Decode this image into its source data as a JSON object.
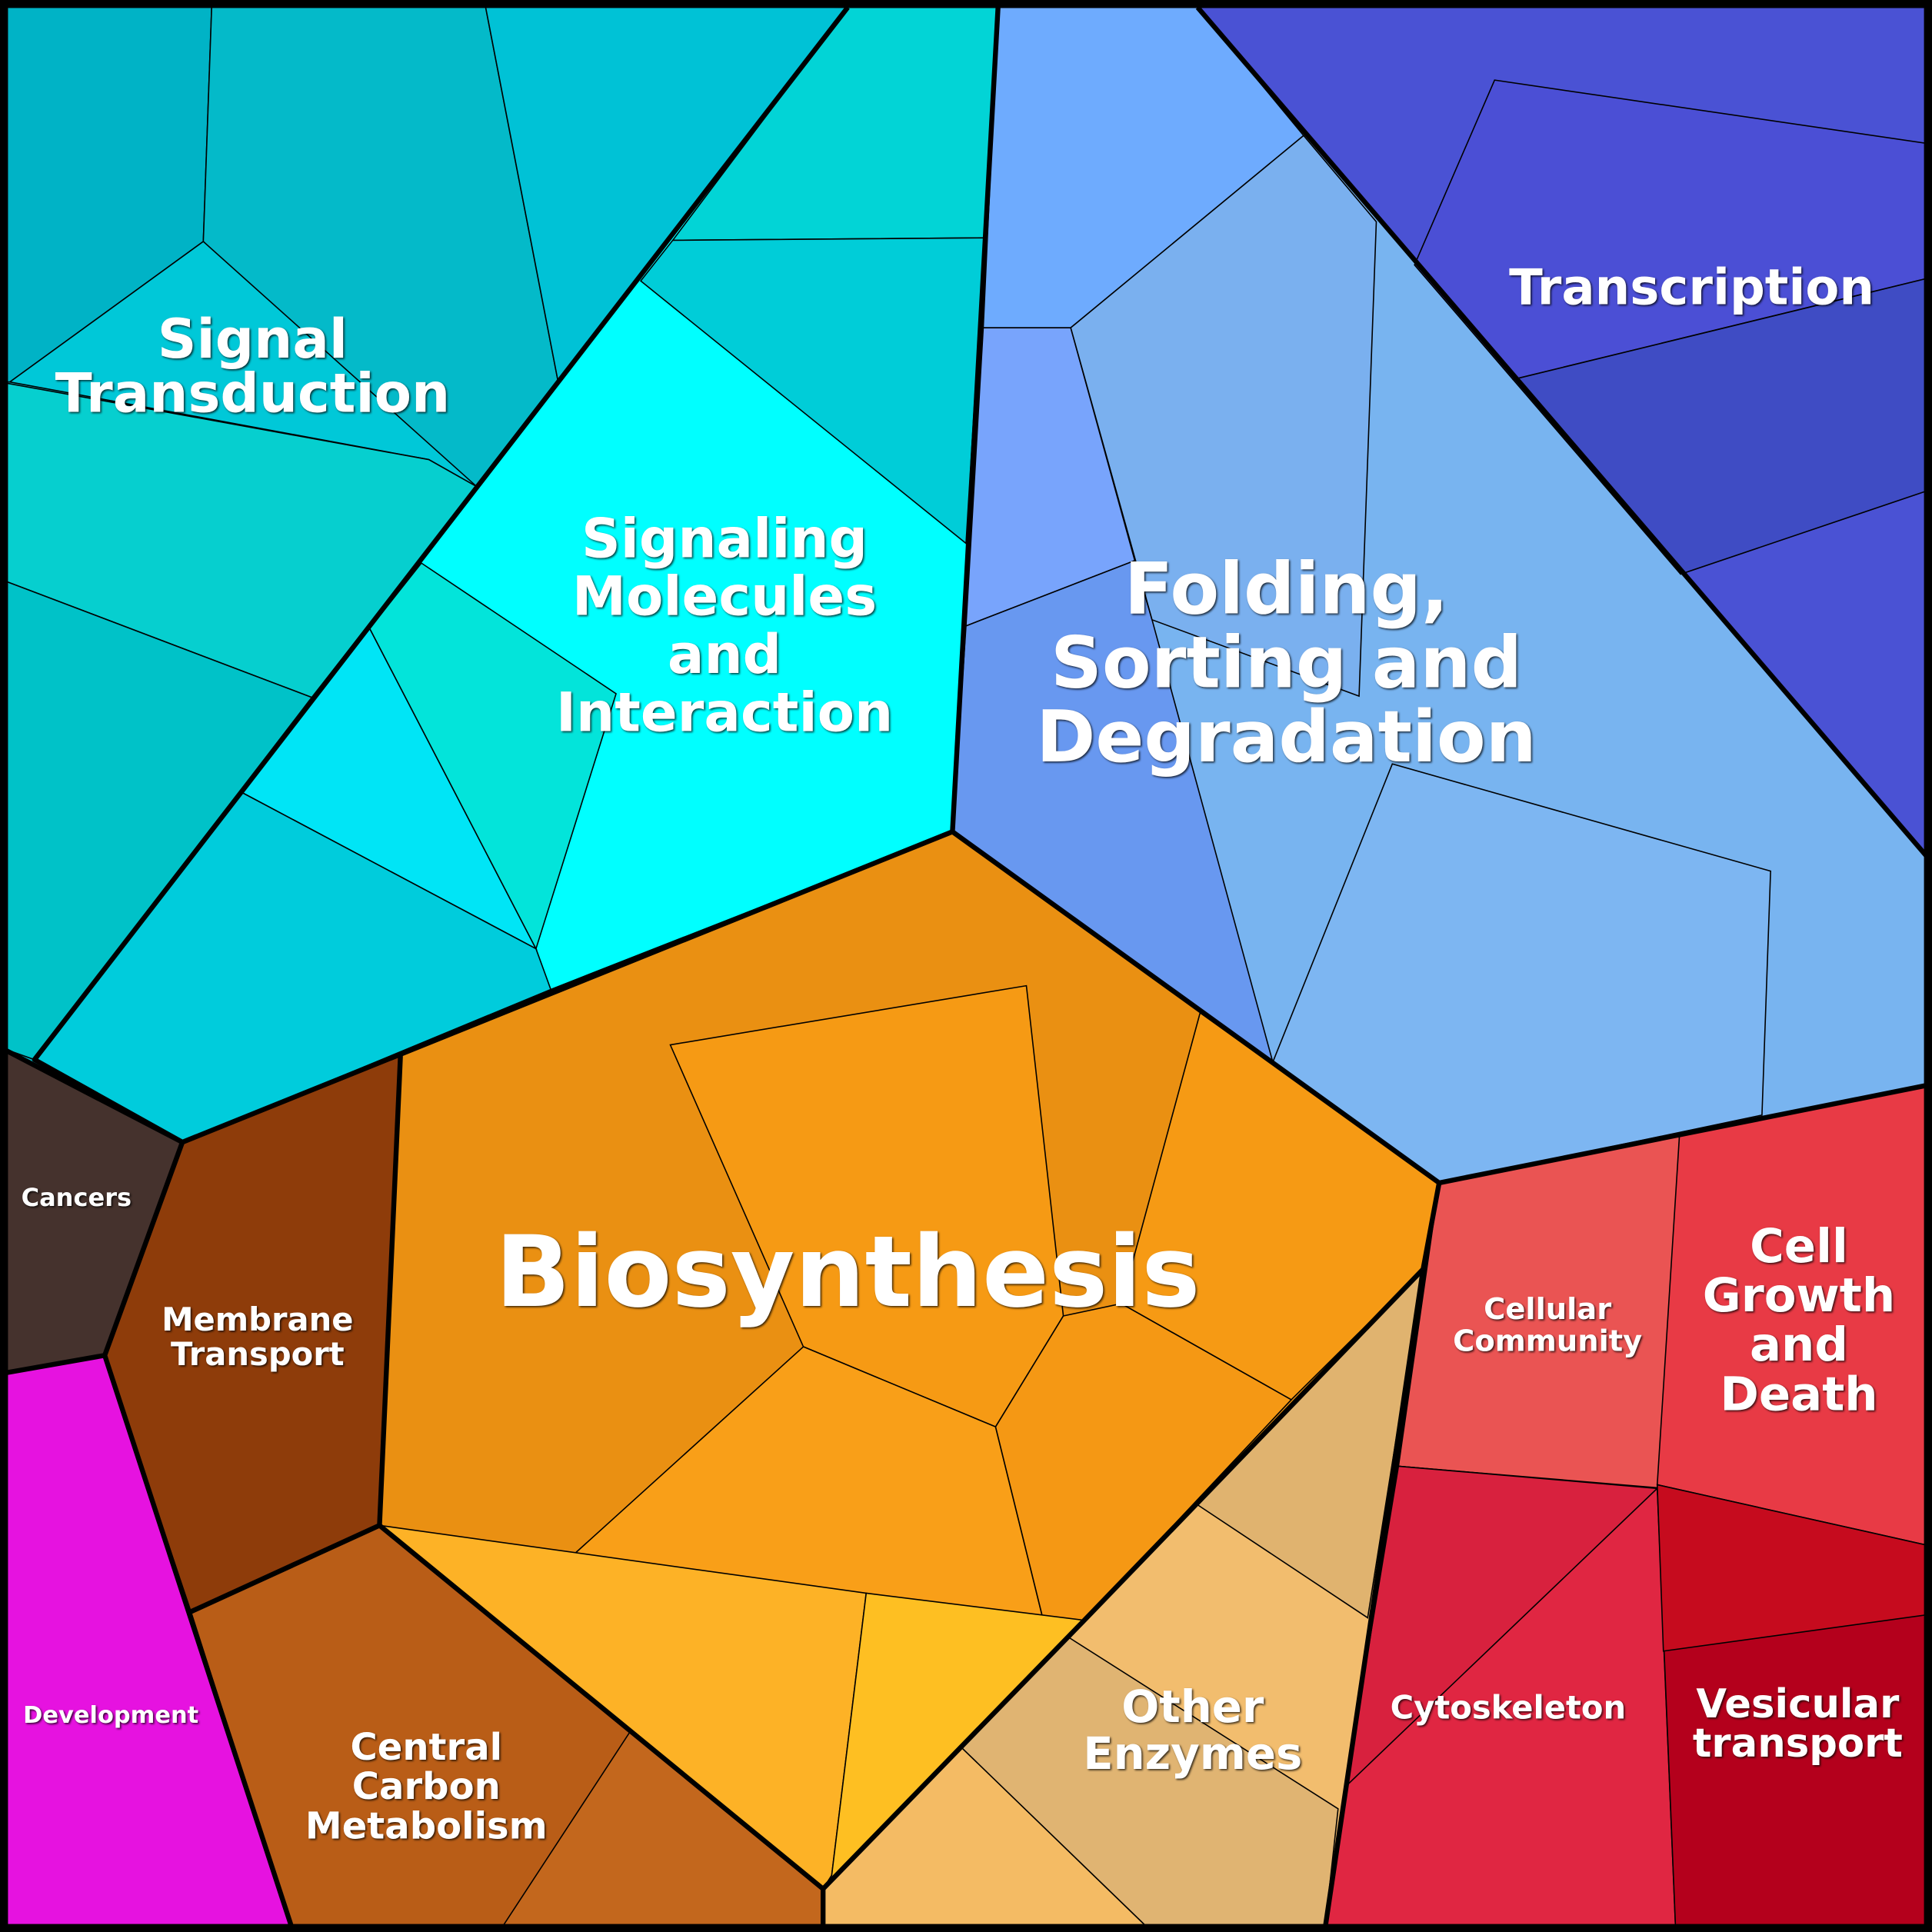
{
  "regions": [
    {
      "label": [
        "Signal",
        "Transduction"
      ]
    },
    {
      "label": [
        "Signaling",
        "Molecules",
        "and",
        "Interaction"
      ]
    },
    {
      "label": [
        "Folding,",
        "Sorting and",
        "Degradation"
      ]
    },
    {
      "label": [
        "Transcription"
      ]
    },
    {
      "label": [
        "Biosynthesis"
      ]
    },
    {
      "label": [
        "Cancers"
      ]
    },
    {
      "label": [
        "Membrane",
        "Transport"
      ]
    },
    {
      "label": [
        "Development"
      ]
    },
    {
      "label": [
        "Central",
        "Carbon",
        "Metabolism"
      ]
    },
    {
      "label": [
        "Other",
        "Enzymes"
      ]
    },
    {
      "label": [
        "Cellular",
        "Community"
      ]
    },
    {
      "label": [
        "Cell",
        "Growth",
        "and",
        "Death"
      ]
    },
    {
      "label": [
        "Cytoskeleton"
      ]
    },
    {
      "label": [
        "Vesicular",
        "transport"
      ]
    }
  ]
}
